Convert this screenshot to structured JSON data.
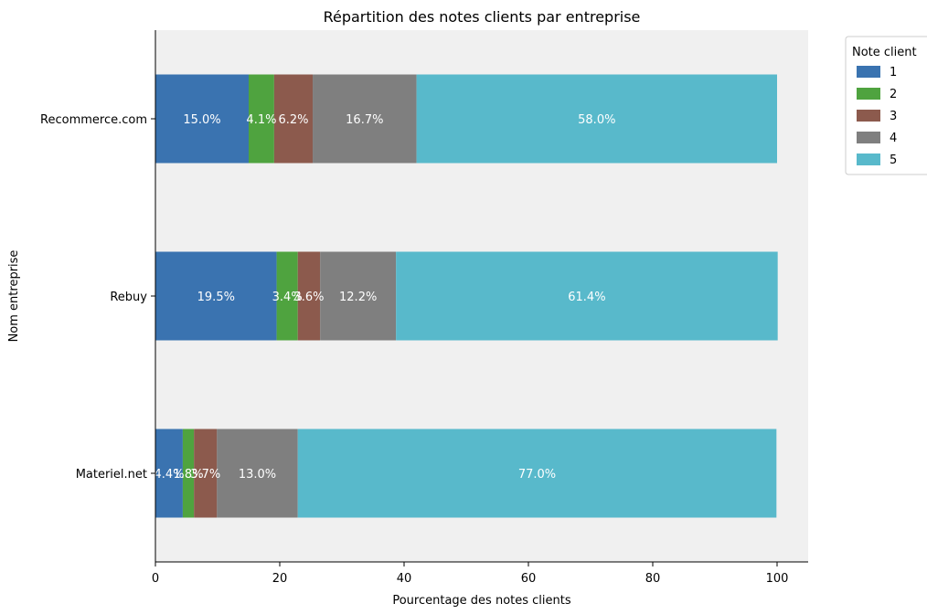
{
  "chart_data": {
    "type": "bar",
    "orientation": "horizontal",
    "stacked": true,
    "title": "Répartition des notes clients par entreprise",
    "xlabel": "Pourcentage des notes clients",
    "ylabel": "Nom entreprise",
    "xlim": [
      0,
      105
    ],
    "xticks": [
      "0",
      "20",
      "40",
      "60",
      "80",
      "100"
    ],
    "categories": [
      "Recommerce.com",
      "Rebuy",
      "Materiel.net"
    ],
    "series": [
      {
        "name": "1",
        "color": "#3a73b0",
        "values": [
          15.0,
          19.5,
          4.4
        ],
        "labels": [
          "15.0%",
          "19.5%",
          "4.4%"
        ]
      },
      {
        "name": "2",
        "color": "#4fa33f",
        "values": [
          4.1,
          3.4,
          1.8
        ],
        "labels": [
          "4.1%",
          "3.4%",
          "1.8%"
        ]
      },
      {
        "name": "3",
        "color": "#8c5a4d",
        "values": [
          6.2,
          3.6,
          3.7
        ],
        "labels": [
          "6.2%",
          "3.6%",
          "3.7%"
        ]
      },
      {
        "name": "4",
        "color": "#7f7f7f",
        "values": [
          16.7,
          12.2,
          13.0
        ],
        "labels": [
          "16.7%",
          "12.2%",
          "13.0%"
        ]
      },
      {
        "name": "5",
        "color": "#58b9cb",
        "values": [
          58.0,
          61.4,
          77.0
        ],
        "labels": [
          "58.0%",
          "61.4%",
          "77.0%"
        ]
      }
    ],
    "legend": {
      "title": "Note client",
      "placement": "outside-top-right"
    },
    "grid": false,
    "background": "#f0f0f0"
  }
}
